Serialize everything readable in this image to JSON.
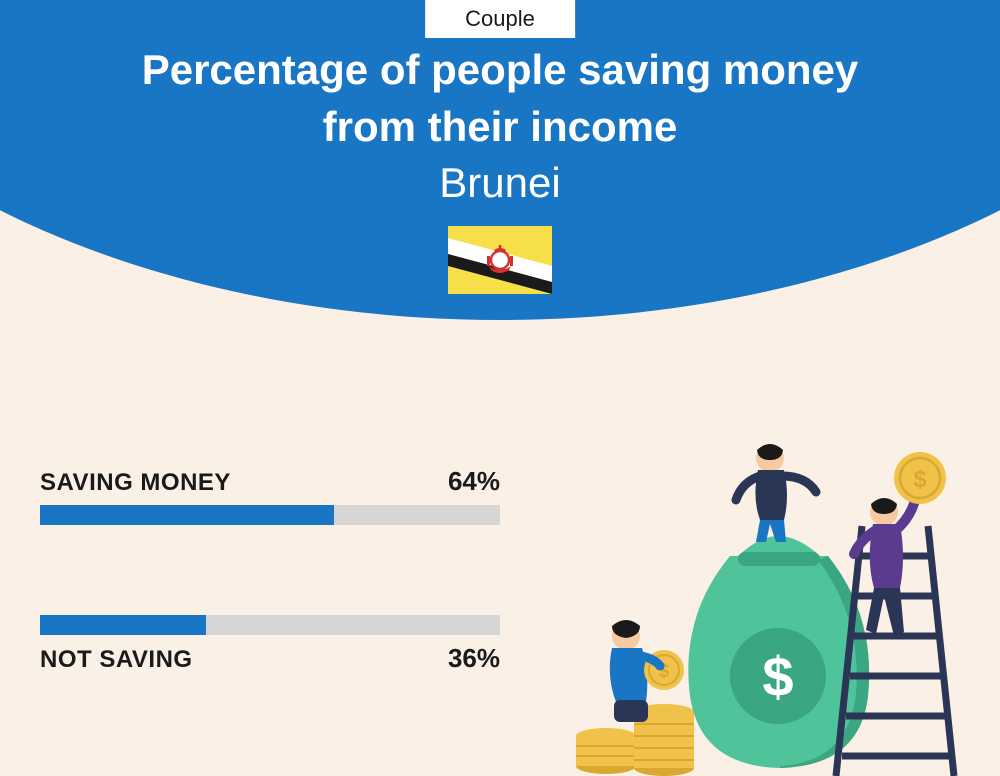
{
  "badge": {
    "label": "Couple"
  },
  "title": {
    "line1": "Percentage of people saving money",
    "line2": "from their income",
    "country": "Brunei"
  },
  "flag": {
    "bg": "#f7df4a",
    "stripe_white": "#ffffff",
    "stripe_black": "#1a1a1a",
    "emblem": "#d63030"
  },
  "bars": {
    "track_color": "#d6d6d6",
    "fill_color": "#1976c5",
    "items": [
      {
        "label": "SAVING MONEY",
        "value_text": "64%",
        "percent": 64,
        "label_position": "above"
      },
      {
        "label": "NOT SAVING",
        "value_text": "36%",
        "percent": 36,
        "label_position": "below"
      }
    ]
  },
  "colors": {
    "header_bg": "#1976c5",
    "page_bg": "#fbf0e6",
    "title_text": "#ffffff",
    "body_text": "#1a1a1a"
  },
  "illustration": {
    "bag": "#4fc39a",
    "bag_shadow": "#3aa782",
    "coin": "#f0c24a",
    "coin_edge": "#d9a830",
    "ladder": "#2b3556",
    "person1_top": "#2b3556",
    "person1_bottom": "#1976c5",
    "person2_top": "#5a3b8f",
    "person3_top": "#1976c5",
    "skin": "#f6c9a0",
    "hair": "#1a1a1a",
    "dollar": "#ffffff"
  }
}
